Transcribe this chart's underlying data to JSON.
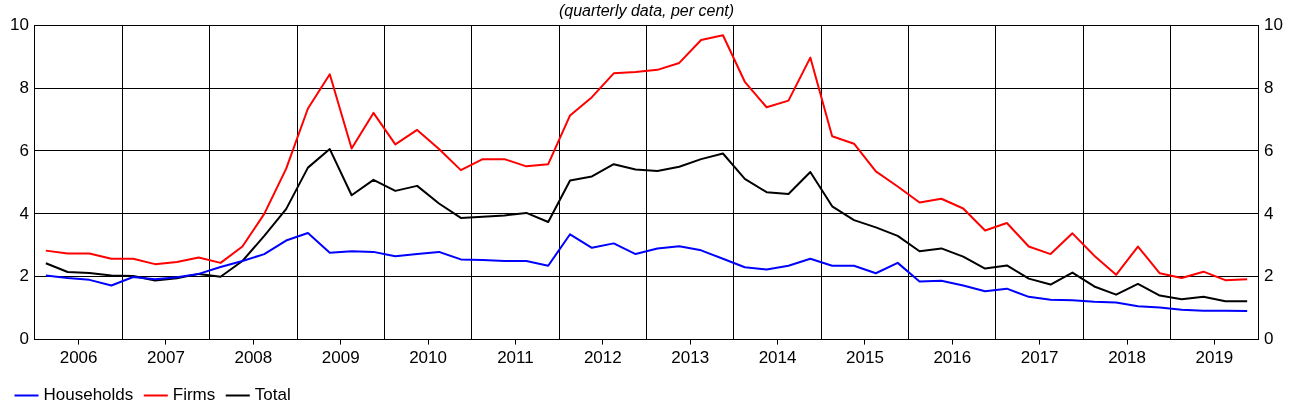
{
  "chart_data": {
    "type": "line",
    "title": "(quarterly data, per cent)",
    "x": [
      2006.125,
      2006.375,
      2006.625,
      2006.875,
      2007.125,
      2007.375,
      2007.625,
      2007.875,
      2008.125,
      2008.375,
      2008.625,
      2008.875,
      2009.125,
      2009.375,
      2009.625,
      2009.875,
      2010.125,
      2010.375,
      2010.625,
      2010.875,
      2011.125,
      2011.375,
      2011.625,
      2011.875,
      2012.125,
      2012.375,
      2012.625,
      2012.875,
      2013.125,
      2013.375,
      2013.625,
      2013.875,
      2014.125,
      2014.375,
      2014.625,
      2014.875,
      2015.125,
      2015.375,
      2015.625,
      2015.875,
      2016.125,
      2016.375,
      2016.625,
      2016.875,
      2017.125,
      2017.375,
      2017.625,
      2017.875,
      2018.125,
      2018.375,
      2018.625,
      2018.875,
      2019.125,
      2019.375,
      2019.625,
      2019.875
    ],
    "series": [
      {
        "name": "Households",
        "color": "#0000ff",
        "values": [
          2.04,
          1.96,
          1.9,
          1.72,
          1.99,
          1.92,
          1.98,
          2.09,
          2.31,
          2.5,
          2.72,
          3.15,
          3.39,
          2.76,
          2.81,
          2.79,
          2.65,
          2.72,
          2.79,
          2.55,
          2.53,
          2.5,
          2.5,
          2.35,
          3.35,
          2.92,
          3.06,
          2.72,
          2.9,
          2.97,
          2.84,
          2.57,
          2.3,
          2.23,
          2.35,
          2.57,
          2.35,
          2.35,
          2.11,
          2.44,
          1.85,
          1.87,
          1.72,
          1.54,
          1.62,
          1.36,
          1.27,
          1.25,
          1.2,
          1.18,
          1.06,
          1.02,
          0.95,
          0.92,
          0.92,
          0.91
        ]
      },
      {
        "name": "Firms",
        "color": "#ff0000",
        "values": [
          2.83,
          2.74,
          2.74,
          2.57,
          2.57,
          2.4,
          2.47,
          2.61,
          2.44,
          2.96,
          4.0,
          5.43,
          7.35,
          8.44,
          6.08,
          7.21,
          6.21,
          6.67,
          6.06,
          5.39,
          5.74,
          5.74,
          5.51,
          5.58,
          7.13,
          7.71,
          8.47,
          8.51,
          8.58,
          8.8,
          9.53,
          9.68,
          8.2,
          7.39,
          7.6,
          8.97,
          6.47,
          6.23,
          5.35,
          4.87,
          4.36,
          4.48,
          4.17,
          3.47,
          3.71,
          2.96,
          2.72,
          3.38,
          2.67,
          2.06,
          2.96,
          2.11,
          1.96,
          2.16,
          1.89,
          1.92
        ]
      },
      {
        "name": "Total",
        "color": "#000000",
        "values": [
          2.43,
          2.15,
          2.12,
          2.04,
          2.02,
          1.88,
          1.95,
          2.09,
          2.0,
          2.5,
          3.3,
          4.15,
          5.47,
          6.06,
          4.59,
          5.08,
          4.73,
          4.89,
          4.33,
          3.87,
          3.91,
          3.95,
          4.03,
          3.74,
          5.06,
          5.19,
          5.58,
          5.41,
          5.36,
          5.5,
          5.74,
          5.92,
          5.11,
          4.69,
          4.63,
          5.33,
          4.24,
          3.8,
          3.57,
          3.3,
          2.81,
          2.9,
          2.64,
          2.26,
          2.36,
          1.94,
          1.75,
          2.13,
          1.69,
          1.43,
          1.77,
          1.4,
          1.28,
          1.36,
          1.22,
          1.22
        ]
      }
    ],
    "xlim": [
      2006,
      2020
    ],
    "xticks": [
      {
        "value": 2006,
        "label": null
      },
      {
        "value": 2006.5,
        "label": "2006"
      },
      {
        "value": 2007,
        "label": null
      },
      {
        "value": 2007.5,
        "label": "2007"
      },
      {
        "value": 2008,
        "label": null
      },
      {
        "value": 2008.5,
        "label": "2008"
      },
      {
        "value": 2009,
        "label": null
      },
      {
        "value": 2009.5,
        "label": "2009"
      },
      {
        "value": 2010,
        "label": null
      },
      {
        "value": 2010.5,
        "label": "2010"
      },
      {
        "value": 2011,
        "label": null
      },
      {
        "value": 2011.5,
        "label": "2011"
      },
      {
        "value": 2012,
        "label": null
      },
      {
        "value": 2012.5,
        "label": "2012"
      },
      {
        "value": 2013,
        "label": null
      },
      {
        "value": 2013.5,
        "label": "2013"
      },
      {
        "value": 2014,
        "label": null
      },
      {
        "value": 2014.5,
        "label": "2014"
      },
      {
        "value": 2015,
        "label": null
      },
      {
        "value": 2015.5,
        "label": "2015"
      },
      {
        "value": 2016,
        "label": null
      },
      {
        "value": 2016.5,
        "label": "2016"
      },
      {
        "value": 2017,
        "label": null
      },
      {
        "value": 2017.5,
        "label": "2017"
      },
      {
        "value": 2018,
        "label": null
      },
      {
        "value": 2018.5,
        "label": "2018"
      },
      {
        "value": 2019,
        "label": null
      },
      {
        "value": 2019.5,
        "label": "2019"
      },
      {
        "value": 2020,
        "label": null
      }
    ],
    "ylim": [
      0,
      10
    ],
    "yticks": [
      0,
      2,
      4,
      6,
      8,
      10
    ],
    "y2lim": [
      0,
      10
    ],
    "y2ticks": [
      0,
      2,
      4,
      6,
      8,
      10
    ],
    "grid": true,
    "legend": "bottom left",
    "marker": "none",
    "line_style": "solid"
  }
}
